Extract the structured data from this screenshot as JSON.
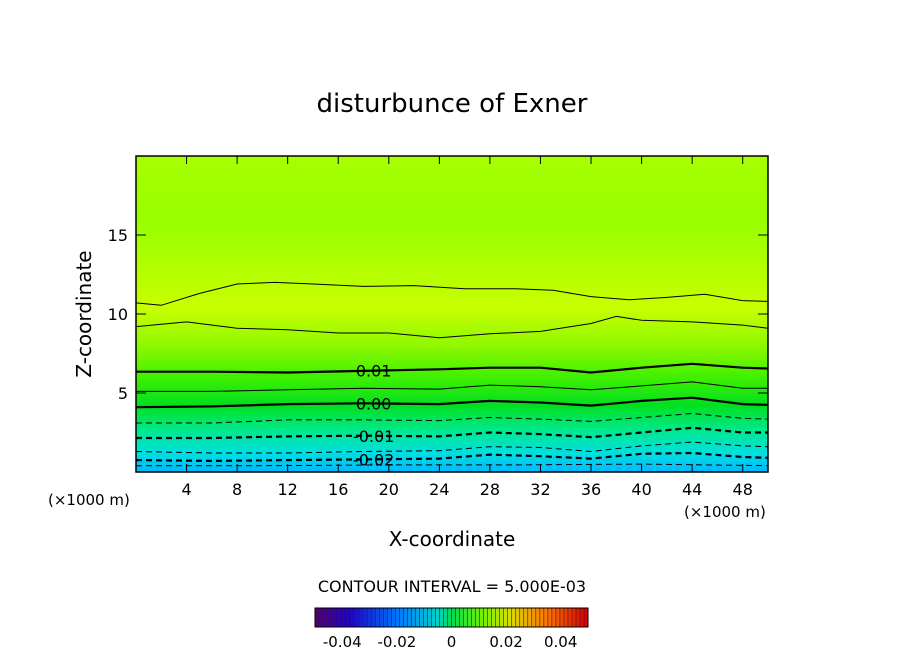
{
  "chart_data": {
    "type": "contour",
    "title": "disturbunce of Exner",
    "xlabel": "X-coordinate",
    "ylabel": "Z-coordinate",
    "x_unit_left": "(×1000 m)",
    "x_unit_right": "(×1000 m)",
    "xlim": [
      0,
      50
    ],
    "ylim": [
      0,
      20
    ],
    "x_ticks": [
      4,
      8,
      12,
      16,
      20,
      24,
      28,
      32,
      36,
      40,
      44,
      48
    ],
    "y_ticks": [
      5,
      10,
      15
    ],
    "contour_interval_text": "CONTOUR INTERVAL = 5.000E-03",
    "contours": [
      {
        "level": -0.025,
        "label": "",
        "dashed": true,
        "bold": false,
        "points": [
          [
            0,
            0.4
          ],
          [
            10,
            0.4
          ],
          [
            20,
            0.45
          ],
          [
            30,
            0.45
          ],
          [
            40,
            0.5
          ],
          [
            50,
            0.4
          ]
        ]
      },
      {
        "level": -0.02,
        "label": "-0.02",
        "dashed": true,
        "bold": true,
        "points": [
          [
            0,
            0.75
          ],
          [
            6,
            0.7
          ],
          [
            12,
            0.75
          ],
          [
            18,
            0.8
          ],
          [
            24,
            0.85
          ],
          [
            28,
            1.1
          ],
          [
            32,
            1.0
          ],
          [
            36,
            0.85
          ],
          [
            40,
            1.15
          ],
          [
            44,
            1.2
          ],
          [
            48,
            0.95
          ],
          [
            50,
            0.9
          ]
        ]
      },
      {
        "level": -0.015,
        "label": "",
        "dashed": true,
        "bold": false,
        "points": [
          [
            0,
            1.3
          ],
          [
            6,
            1.2
          ],
          [
            12,
            1.2
          ],
          [
            18,
            1.3
          ],
          [
            24,
            1.35
          ],
          [
            28,
            1.6
          ],
          [
            32,
            1.55
          ],
          [
            36,
            1.3
          ],
          [
            40,
            1.65
          ],
          [
            44,
            1.9
          ],
          [
            48,
            1.65
          ],
          [
            50,
            1.6
          ]
        ]
      },
      {
        "level": -0.01,
        "label": "-0.01",
        "dashed": true,
        "bold": true,
        "points": [
          [
            0,
            2.15
          ],
          [
            6,
            2.15
          ],
          [
            12,
            2.25
          ],
          [
            18,
            2.3
          ],
          [
            24,
            2.25
          ],
          [
            28,
            2.5
          ],
          [
            32,
            2.4
          ],
          [
            36,
            2.2
          ],
          [
            40,
            2.5
          ],
          [
            44,
            2.8
          ],
          [
            48,
            2.5
          ],
          [
            50,
            2.5
          ]
        ]
      },
      {
        "level": -0.005,
        "label": "",
        "dashed": true,
        "bold": false,
        "points": [
          [
            0,
            3.1
          ],
          [
            6,
            3.1
          ],
          [
            12,
            3.3
          ],
          [
            18,
            3.3
          ],
          [
            24,
            3.25
          ],
          [
            28,
            3.45
          ],
          [
            32,
            3.35
          ],
          [
            36,
            3.2
          ],
          [
            40,
            3.45
          ],
          [
            44,
            3.7
          ],
          [
            48,
            3.4
          ],
          [
            50,
            3.35
          ]
        ]
      },
      {
        "level": 0.0,
        "label": "0.00",
        "dashed": false,
        "bold": true,
        "points": [
          [
            0,
            4.1
          ],
          [
            6,
            4.15
          ],
          [
            12,
            4.3
          ],
          [
            18,
            4.35
          ],
          [
            24,
            4.3
          ],
          [
            28,
            4.5
          ],
          [
            32,
            4.4
          ],
          [
            36,
            4.2
          ],
          [
            40,
            4.5
          ],
          [
            44,
            4.7
          ],
          [
            48,
            4.3
          ],
          [
            50,
            4.25
          ]
        ]
      },
      {
        "level": 0.005,
        "label": "",
        "dashed": false,
        "bold": false,
        "points": [
          [
            0,
            5.1
          ],
          [
            6,
            5.1
          ],
          [
            12,
            5.2
          ],
          [
            18,
            5.3
          ],
          [
            24,
            5.25
          ],
          [
            28,
            5.5
          ],
          [
            32,
            5.4
          ],
          [
            36,
            5.2
          ],
          [
            40,
            5.45
          ],
          [
            44,
            5.7
          ],
          [
            48,
            5.3
          ],
          [
            50,
            5.3
          ]
        ]
      },
      {
        "level": 0.01,
        "label": "0.01",
        "dashed": false,
        "bold": true,
        "points": [
          [
            0,
            6.35
          ],
          [
            6,
            6.35
          ],
          [
            12,
            6.3
          ],
          [
            18,
            6.4
          ],
          [
            24,
            6.5
          ],
          [
            28,
            6.6
          ],
          [
            32,
            6.6
          ],
          [
            36,
            6.3
          ],
          [
            40,
            6.6
          ],
          [
            44,
            6.85
          ],
          [
            48,
            6.6
          ],
          [
            50,
            6.55
          ]
        ]
      },
      {
        "level": 0.015,
        "label": "",
        "dashed": false,
        "bold": false,
        "points": [
          [
            0,
            9.2
          ],
          [
            4,
            9.5
          ],
          [
            8,
            9.1
          ],
          [
            12,
            9.0
          ],
          [
            16,
            8.8
          ],
          [
            20,
            8.8
          ],
          [
            24,
            8.5
          ],
          [
            28,
            8.75
          ],
          [
            32,
            8.9
          ],
          [
            36,
            9.4
          ],
          [
            38,
            9.85
          ],
          [
            40,
            9.6
          ],
          [
            44,
            9.5
          ],
          [
            48,
            9.3
          ],
          [
            50,
            9.1
          ]
        ]
      },
      {
        "level": 0.02,
        "label": "",
        "dashed": false,
        "bold": false,
        "points": [
          [
            0,
            10.7
          ],
          [
            2,
            10.55
          ],
          [
            5,
            11.3
          ],
          [
            8,
            11.9
          ],
          [
            11,
            12.0
          ],
          [
            14,
            11.9
          ],
          [
            18,
            11.75
          ],
          [
            22,
            11.8
          ],
          [
            26,
            11.6
          ],
          [
            30,
            11.6
          ],
          [
            33,
            11.5
          ],
          [
            36,
            11.1
          ],
          [
            39,
            10.9
          ],
          [
            42,
            11.05
          ],
          [
            45,
            11.25
          ],
          [
            48,
            10.85
          ],
          [
            50,
            10.8
          ]
        ]
      }
    ],
    "colorbar": {
      "ticks": [
        "-0.04",
        "-0.02",
        "0",
        "0.02",
        "0.04"
      ],
      "tick_values": [
        -0.04,
        -0.02,
        0,
        0.02,
        0.04
      ],
      "range": [
        -0.05,
        0.05
      ]
    },
    "colors": {
      "field_bottom": "#00c0ff",
      "field_mid": "#00e040",
      "field_top": "#a0ff00",
      "field_max": "#c8ff00"
    }
  }
}
